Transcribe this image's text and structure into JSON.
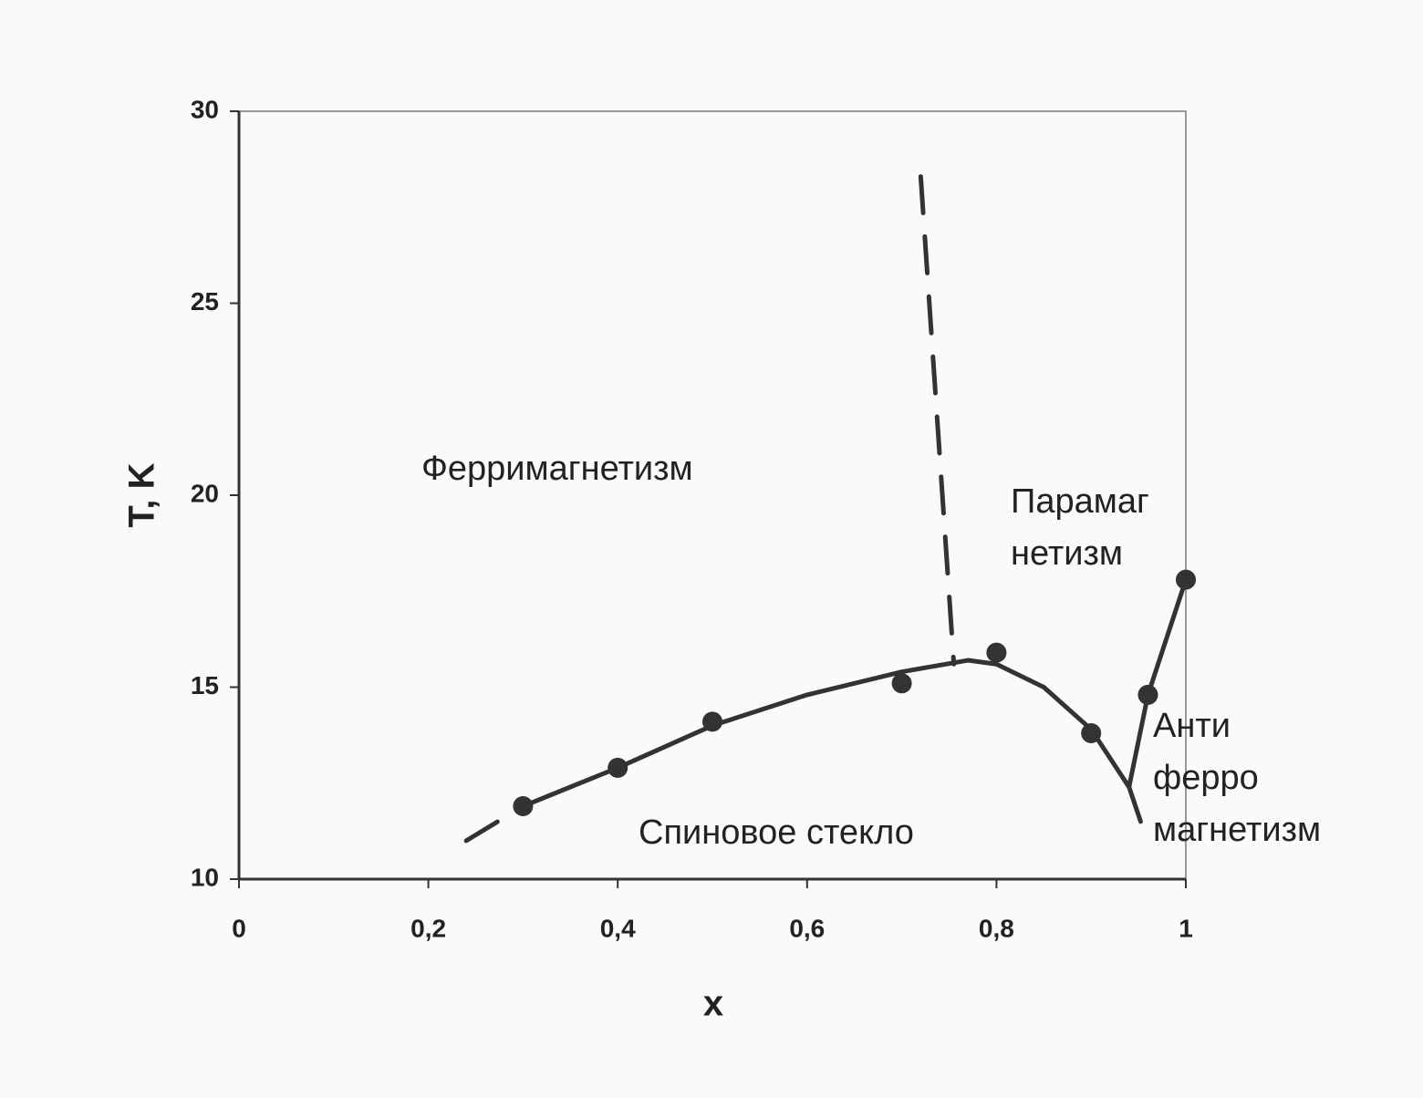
{
  "chart_data": {
    "type": "scatter",
    "xlabel": "x",
    "ylabel": "T, K",
    "xlim": [
      0,
      1
    ],
    "ylim": [
      10,
      30
    ],
    "xticks": [
      0,
      {
        "value": 0.2,
        "label": "0,2"
      },
      {
        "value": 0.4,
        "label": "0,4"
      },
      {
        "value": 0.6,
        "label": "0,6"
      },
      {
        "value": 0.8,
        "label": "0,8"
      },
      1
    ],
    "yticks": [
      10,
      15,
      20,
      25,
      30
    ],
    "grid": false,
    "series": [
      {
        "mode": "markers",
        "color": "#333333",
        "x": [
          0.3,
          0.4,
          0.5,
          0.7,
          0.8,
          0.9,
          0.96,
          1.0
        ],
        "values": [
          11.9,
          12.9,
          14.1,
          15.1,
          15.9,
          13.8,
          14.8,
          17.8
        ]
      },
      {
        "mode": "line",
        "dash": false,
        "color": "#333333",
        "x": [
          0.3,
          0.4,
          0.5,
          0.6,
          0.7,
          0.77,
          0.8,
          0.85,
          0.9,
          0.94
        ],
        "values": [
          11.9,
          12.9,
          14.0,
          14.8,
          15.4,
          15.7,
          15.6,
          15.0,
          13.9,
          12.4
        ]
      },
      {
        "mode": "line",
        "dash": false,
        "color": "#333333",
        "x": [
          0.94,
          0.96,
          1.0
        ],
        "values": [
          12.4,
          14.8,
          17.8
        ]
      },
      {
        "mode": "line",
        "dash": true,
        "color": "#333333",
        "x": [
          0.24,
          0.3
        ],
        "values": [
          11.0,
          11.9
        ]
      },
      {
        "mode": "line",
        "dash": true,
        "color": "#333333",
        "x": [
          0.72,
          0.755
        ],
        "values": [
          28.3,
          15.6
        ]
      },
      {
        "mode": "line",
        "dash": true,
        "color": "#333333",
        "x": [
          0.94,
          0.955
        ],
        "values": [
          12.4,
          11.3
        ]
      }
    ],
    "annotations": [
      [
        "Ферримагнетизм"
      ],
      [
        "Парамаг",
        "нетизм"
      ],
      [
        "Спиновое стекло"
      ],
      [
        "Анти",
        "ферро",
        "магнетизм"
      ]
    ]
  }
}
